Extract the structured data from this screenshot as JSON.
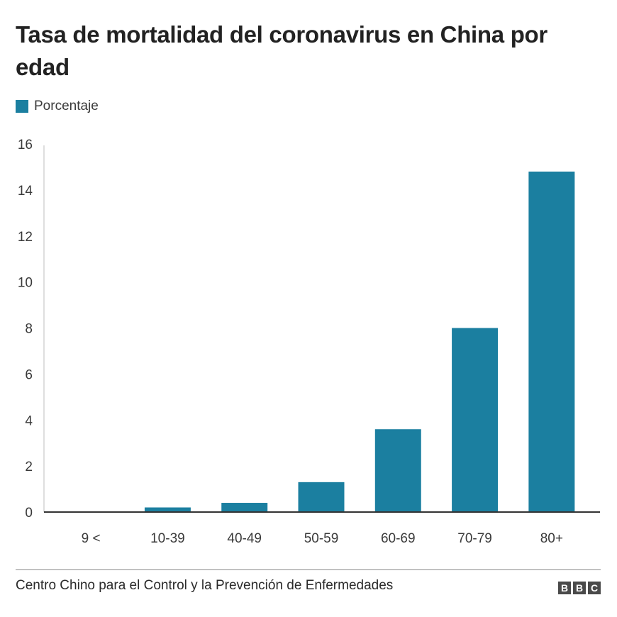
{
  "chart_data": {
    "type": "bar",
    "title": "Tasa de mortalidad del coronavirus en China por edad",
    "categories": [
      "9 <",
      "10-39",
      "40-49",
      "50-59",
      "60-69",
      "70-79",
      "80+"
    ],
    "series": [
      {
        "name": "Porcentaje",
        "values": [
          0,
          0.2,
          0.4,
          1.3,
          3.6,
          8.0,
          14.8
        ]
      }
    ],
    "ylim": [
      0,
      16
    ],
    "yticks": [
      "0",
      "2",
      "4",
      "6",
      "8",
      "10",
      "12",
      "14",
      "16"
    ],
    "grid": false,
    "legend_position": "top-left",
    "bar_color": "#1b7fa0",
    "source": "Centro Chino para el Control y la Prevención de Enfermedades",
    "logo": "BBC"
  }
}
